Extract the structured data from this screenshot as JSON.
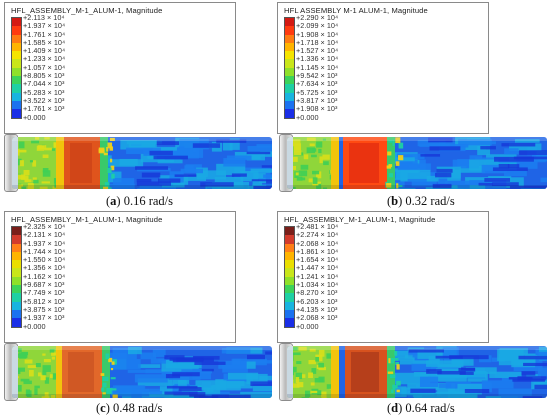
{
  "panels": [
    {
      "letter": "a",
      "caption_text": " 0.16 rad/s",
      "legend_title": "HFL_ASSEMBLY_M-1_ALUM-1, Magnitude",
      "legend_labels": [
        "+2.113 × 10⁴",
        "+1.937 × 10⁴",
        "+1.761 × 10⁴",
        "+1.585 × 10⁴",
        "+1.409 × 10⁴",
        "+1.233 × 10⁴",
        "+1.057 × 10⁴",
        "+8.805 × 10³",
        "+7.044 × 10³",
        "+5.283 × 10³",
        "+3.522 × 10³",
        "+1.761 × 10³",
        "+0.000"
      ]
    },
    {
      "letter": "b",
      "caption_text": " 0.32 rad/s",
      "legend_title": "HFL  ASSEMBLY  M-1  ALUM-1, Magnitude",
      "legend_labels": [
        "+2.290 × 10⁴",
        "+2.099 × 10⁴",
        "+1.908 × 10⁴",
        "+1.718 × 10⁴",
        "+1.527 × 10⁴",
        "+1.336 × 10⁴",
        "+1.145 × 10⁴",
        "+9.542 × 10³",
        "+7.634 × 10³",
        "+5.725 × 10³",
        "+3.817 × 10³",
        "+1.908 × 10³",
        "+0.000"
      ]
    },
    {
      "letter": "c",
      "caption_text": " 0.48 rad/s",
      "legend_title": "HFL_ASSEMBLY_M-1_ALUM-1, Magnitude",
      "legend_labels": [
        "+2.325 × 10⁴",
        "+2.131 × 10⁴",
        "+1.937 × 10⁴",
        "+1.744 × 10⁴",
        "+1.550 × 10⁴",
        "+1.356 × 10⁴",
        "+1.162 × 10⁴",
        "+9.687 × 10³",
        "+7.749 × 10³",
        "+5.812 × 10³",
        "+3.875 × 10³",
        "+1.937 × 10³",
        "+0.000"
      ]
    },
    {
      "letter": "d",
      "caption_text": " 0.64 rad/s",
      "legend_title": "HFL_ASSEMBLY_M-1_ALUM-1, Magnitude",
      "legend_labels": [
        "+2.481 × 10⁴",
        "+2.274 × 10⁴",
        "+2.068 × 10⁴",
        "+1.861 × 10⁴",
        "+1.654 × 10⁴",
        "+1.447 × 10⁴",
        "+1.241 × 10⁴",
        "+1.034 × 10⁴",
        "+8.270 × 10³",
        "+6.203 × 10³",
        "+4.135 × 10³",
        "+2.068 × 10³",
        "+0.000"
      ]
    }
  ],
  "colors": {
    "scale": [
      "#d41a13",
      "#ff3b10",
      "#ff7b12",
      "#ffb400",
      "#f5e400",
      "#c9e61a",
      "#8fe02a",
      "#3cd35a",
      "#1ed0a4",
      "#18b4e0",
      "#1b72f0",
      "#1a2ee6"
    ],
    "scale_alt": [
      "#7a1f1a",
      "#d23b2c",
      "#ff7f18",
      "#ffb400",
      "#eadf00",
      "#c9e61a",
      "#8fe02a",
      "#3cd35a",
      "#1ed0a4",
      "#18b4e0",
      "#1b72f0",
      "#1a2ee6"
    ]
  }
}
